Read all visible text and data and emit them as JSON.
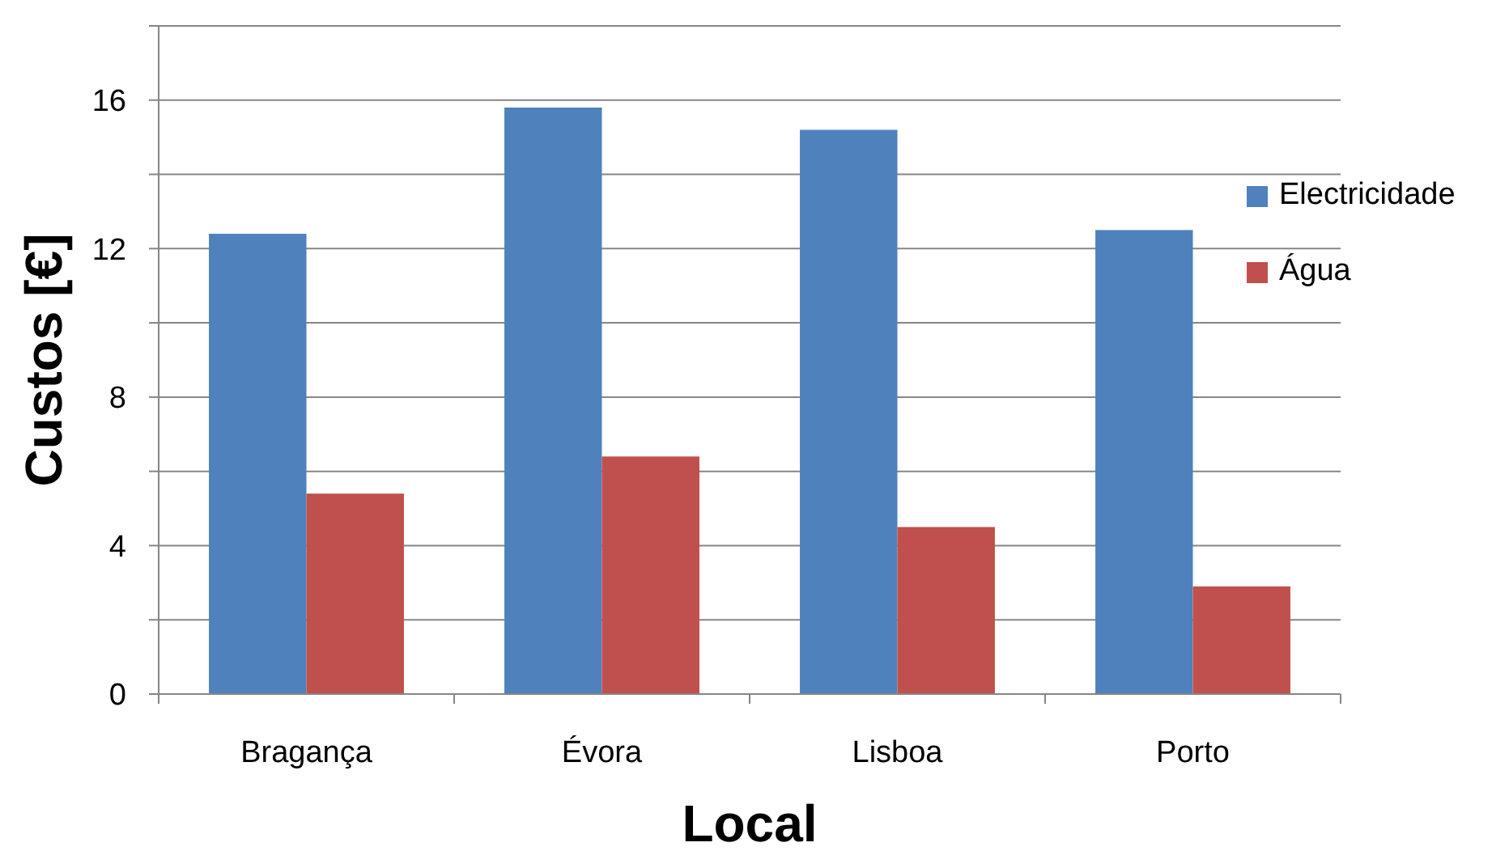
{
  "chart_data": {
    "type": "bar",
    "xlabel": "Local",
    "ylabel": "Custos [€]",
    "categories": [
      "Bragança",
      "Évora",
      "Lisboa",
      "Porto"
    ],
    "series": [
      {
        "name": "Electricidade",
        "color": "#4f81bd",
        "values": [
          12.4,
          15.8,
          15.2,
          12.5
        ]
      },
      {
        "name": "Água",
        "color": "#c0504d",
        "values": [
          5.4,
          6.4,
          4.5,
          2.9
        ]
      }
    ],
    "ylim": [
      0,
      18
    ],
    "yticks": [
      0,
      {
        "value": 2,
        "label": null
      },
      4,
      {
        "value": 6,
        "label": null
      },
      8,
      {
        "value": 10,
        "label": null
      },
      12,
      {
        "value": 14,
        "label": null
      },
      16,
      {
        "value": 18,
        "label": null
      }
    ],
    "grid": "y",
    "legend": "right"
  }
}
